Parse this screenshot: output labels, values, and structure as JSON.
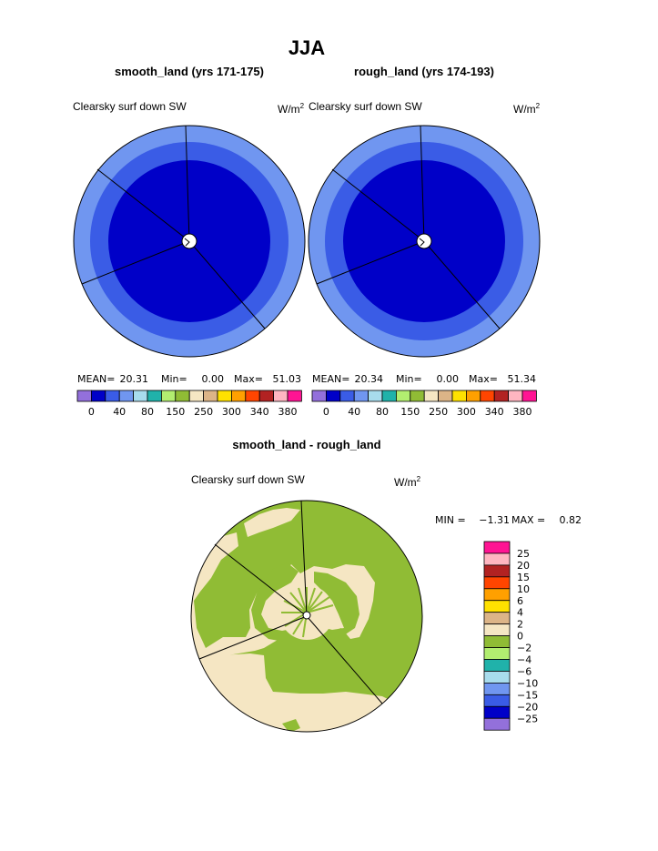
{
  "title": "JJA",
  "panels": [
    {
      "title": "smooth_land (yrs 171-175)",
      "variable": "Clearsky surf down SW",
      "units_base": "W/m",
      "units_exp": "2",
      "stats": {
        "mean_label": "MEAN=",
        "mean": "20.31",
        "min_label": "Min=",
        "min": "0.00",
        "max_label": "Max=",
        "max": "51.03"
      }
    },
    {
      "title": "rough_land (yrs 174-193)",
      "variable": "Clearsky surf down SW",
      "units_base": "W/m",
      "units_exp": "2",
      "stats": {
        "mean_label": "MEAN=",
        "mean": "20.34",
        "min_label": "Min=",
        "min": "0.00",
        "max_label": "Max=",
        "max": "51.34"
      }
    }
  ],
  "abs_colorbar": {
    "colors": [
      "#9370db",
      "#0000c8",
      "#3a5ce6",
      "#7096f0",
      "#a8dced",
      "#20b2aa",
      "#b2ee70",
      "#90bc35",
      "#f5e6c3",
      "#dcb487",
      "#ffe100",
      "#ffa000",
      "#ff4500",
      "#b22222",
      "#ffb6c1",
      "#ff1493"
    ],
    "ticks": [
      "0",
      "40",
      "80",
      "150",
      "250",
      "300",
      "340",
      "380"
    ]
  },
  "diff_panel": {
    "title": "smooth_land - rough_land",
    "variable": "Clearsky surf down SW",
    "units_base": "W/m",
    "units_exp": "2",
    "min_label": "MIN =",
    "min": "−1.31",
    "max_label": "MAX =",
    "max": "0.82"
  },
  "diff_colorbar": {
    "colors_top_to_bottom": [
      "#ff1493",
      "#ffb6c1",
      "#b22222",
      "#ff4500",
      "#ffa000",
      "#ffe100",
      "#dcb487",
      "#f5e6c3",
      "#90bc35",
      "#b2ee70",
      "#20b2aa",
      "#a8dced",
      "#7096f0",
      "#3a5ce6",
      "#0000c8",
      "#9370db"
    ],
    "ticks_top_to_bottom": [
      "25",
      "20",
      "15",
      "10",
      "6",
      "4",
      "2",
      "0",
      "−2",
      "−4",
      "−6",
      "−10",
      "−15",
      "−20",
      "−25"
    ]
  },
  "chart_data": [
    {
      "type": "heatmap",
      "title": "smooth_land (yrs 171-175)",
      "projection": "polar stereographic",
      "ring_levels_from_center": [
        "#0000c8",
        "#3a5ce6",
        "#7096f0"
      ],
      "stats": {
        "mean": 20.31,
        "min": 0.0,
        "max": 51.03
      }
    },
    {
      "type": "heatmap",
      "title": "rough_land (yrs 174-193)",
      "projection": "polar stereographic",
      "ring_levels_from_center": [
        "#0000c8",
        "#3a5ce6",
        "#7096f0"
      ],
      "stats": {
        "mean": 20.34,
        "min": 0.0,
        "max": 51.34
      }
    },
    {
      "type": "heatmap",
      "title": "smooth_land - rough_land",
      "projection": "polar stereographic",
      "fill_levels": [
        "#90bc35",
        "#f5e6c3"
      ],
      "stats": {
        "min": -1.31,
        "max": 0.82
      }
    }
  ]
}
